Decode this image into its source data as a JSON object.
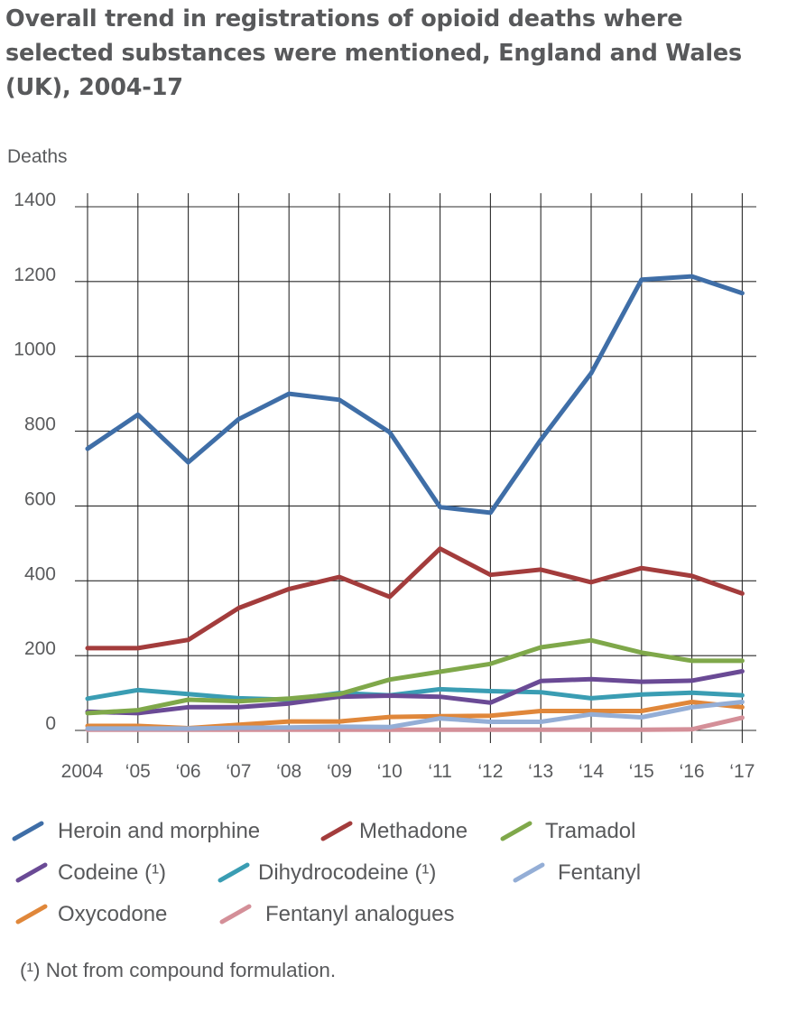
{
  "chart_data": {
    "type": "line",
    "title_lines": [
      "Overall trend in registrations of opioid deaths where",
      "selected substances were mentioned, England and Wales",
      "(UK), 2004-17"
    ],
    "ylabel": "Deaths",
    "xlabel": "",
    "ylim": [
      0,
      1400
    ],
    "yticks": [
      0,
      200,
      400,
      600,
      800,
      1000,
      1200,
      1400
    ],
    "ytick_labels": [
      "0",
      "200",
      "400",
      "600",
      "800",
      "1000",
      "1200",
      "1400"
    ],
    "x": [
      2004,
      2005,
      2006,
      2007,
      2008,
      2009,
      2010,
      2011,
      2012,
      2013,
      2014,
      2015,
      2016,
      2017
    ],
    "xtick_labels": [
      "2004",
      "‘05",
      "‘06",
      "‘07",
      "‘08",
      "‘09",
      "‘10",
      "‘11",
      "‘12",
      "‘13",
      "‘14",
      "‘15",
      "‘16",
      "‘17"
    ],
    "grid": true,
    "legend_position": "bottom",
    "series": [
      {
        "name": "Heroin and morphine",
        "color": "#3f6ea7",
        "values": [
          753,
          844,
          717,
          832,
          900,
          884,
          797,
          597,
          582,
          777,
          955,
          1205,
          1214,
          1169
        ]
      },
      {
        "name": "Methadone",
        "color": "#a33c3c",
        "values": [
          220,
          220,
          242,
          327,
          378,
          410,
          357,
          486,
          416,
          430,
          396,
          434,
          413,
          366
        ]
      },
      {
        "name": "Tramadol",
        "color": "#7fa84a",
        "values": [
          46,
          54,
          82,
          78,
          85,
          97,
          136,
          157,
          178,
          222,
          241,
          208,
          186,
          186
        ]
      },
      {
        "name": "Codeine (¹)",
        "color": "#6a4a95",
        "values": [
          50,
          46,
          62,
          62,
          72,
          90,
          93,
          90,
          74,
          132,
          137,
          130,
          133,
          158
        ]
      },
      {
        "name": "Dihydrocodeine (¹)",
        "color": "#3a9db3",
        "values": [
          85,
          108,
          97,
          86,
          82,
          100,
          94,
          110,
          105,
          102,
          86,
          96,
          101,
          94
        ]
      },
      {
        "name": "Fentanyl",
        "color": "#94aed6",
        "values": [
          5,
          5,
          5,
          7,
          8,
          10,
          9,
          32,
          23,
          23,
          43,
          35,
          62,
          76
        ]
      },
      {
        "name": "Oxycodone",
        "color": "#e0873a",
        "values": [
          12,
          12,
          6,
          15,
          24,
          24,
          36,
          38,
          39,
          52,
          52,
          52,
          76,
          62
        ]
      },
      {
        "name": "Fentanyl analogues",
        "color": "#d48f98",
        "values": [
          2,
          2,
          2,
          2,
          2,
          2,
          2,
          2,
          2,
          2,
          2,
          2,
          3,
          34
        ]
      }
    ],
    "footnote": "(¹) Not from compound formulation."
  }
}
